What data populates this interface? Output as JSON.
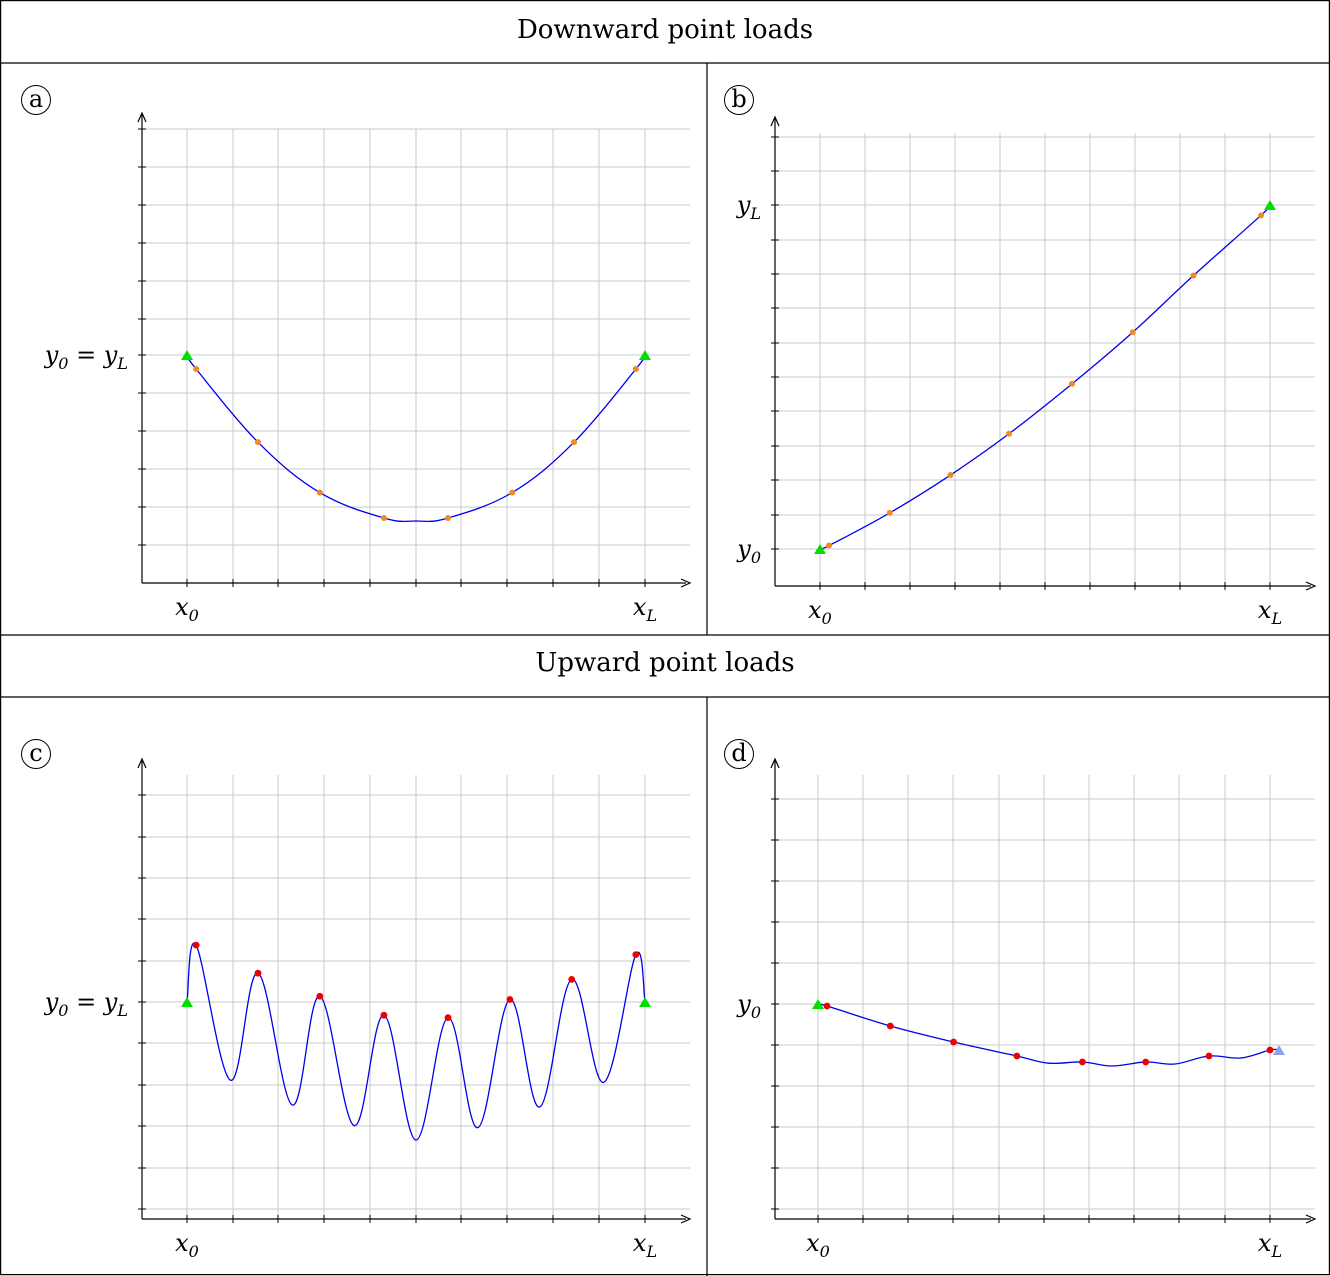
{
  "headers": {
    "top": "Downward point loads",
    "bottom": "Upward point loads"
  },
  "colors": {
    "grid": "#c8c8c8",
    "curve": "#0000ee",
    "load_down": "#f08a24",
    "load_up": "#ee0000",
    "support": "#00e000",
    "support_alt": "#8ea0e8"
  },
  "chart_data": [
    {
      "panel": "a",
      "badge": "a",
      "type": "line",
      "xlim": [
        -1,
        11
      ],
      "ylim": [
        -6,
        5.5
      ],
      "grid": true,
      "x_ticks": [
        {
          "x": 0,
          "var": "x",
          "sub": "0"
        },
        {
          "x": 10,
          "var": "x",
          "sub": "L"
        }
      ],
      "y_ticks": [
        {
          "y": 0,
          "text": "y",
          "sub": "0",
          "text2": " = y",
          "sub2": "L"
        }
      ],
      "supports": [
        {
          "x": 0,
          "y": 0,
          "kind": "fixed"
        },
        {
          "x": 10,
          "y": 0,
          "kind": "fixed"
        }
      ],
      "loads": {
        "direction": "down",
        "points": [
          [
            0.2,
            -0.37
          ],
          [
            1.55,
            -2.3
          ],
          [
            2.9,
            -3.63
          ],
          [
            4.3,
            -4.3
          ],
          [
            5.7,
            -4.3
          ],
          [
            7.1,
            -3.63
          ],
          [
            8.45,
            -2.3
          ],
          [
            9.8,
            -0.37
          ]
        ]
      },
      "curve": [
        [
          0,
          0
        ],
        [
          0.2,
          -0.37
        ],
        [
          1.55,
          -2.3
        ],
        [
          2.9,
          -3.63
        ],
        [
          4.3,
          -4.3
        ],
        [
          5.0,
          -4.38
        ],
        [
          5.7,
          -4.3
        ],
        [
          7.1,
          -3.63
        ],
        [
          8.45,
          -2.3
        ],
        [
          9.8,
          -0.37
        ],
        [
          10,
          0
        ]
      ]
    },
    {
      "panel": "b",
      "badge": "b",
      "type": "line",
      "xlim": [
        -1,
        11
      ],
      "ylim": [
        -1,
        12
      ],
      "grid": true,
      "x_ticks": [
        {
          "x": 0,
          "var": "x",
          "sub": "0"
        },
        {
          "x": 10,
          "var": "x",
          "sub": "L"
        }
      ],
      "y_ticks": [
        {
          "y": 0,
          "text": "y",
          "sub": "0"
        },
        {
          "y": 10,
          "text": "y",
          "sub": "L"
        }
      ],
      "supports": [
        {
          "x": 0,
          "y": 0,
          "kind": "fixed"
        },
        {
          "x": 10,
          "y": 10,
          "kind": "fixed"
        }
      ],
      "loads": {
        "direction": "down",
        "points": [
          [
            0.2,
            0.1
          ],
          [
            1.55,
            1.05
          ],
          [
            2.9,
            2.15
          ],
          [
            4.2,
            3.35
          ],
          [
            5.6,
            4.8
          ],
          [
            6.95,
            6.3
          ],
          [
            8.3,
            7.95
          ],
          [
            9.8,
            9.7
          ]
        ]
      },
      "curve": [
        [
          0,
          0
        ],
        [
          0.2,
          0.1
        ],
        [
          1.55,
          1.05
        ],
        [
          2.9,
          2.15
        ],
        [
          4.2,
          3.35
        ],
        [
          5.6,
          4.8
        ],
        [
          6.95,
          6.3
        ],
        [
          8.3,
          7.95
        ],
        [
          9.8,
          9.7
        ],
        [
          10,
          10
        ]
      ]
    },
    {
      "panel": "c",
      "badge": "c",
      "type": "line",
      "xlim": [
        -1,
        11
      ],
      "ylim": [
        -5,
        5.5
      ],
      "grid": true,
      "x_ticks": [
        {
          "x": 0,
          "var": "x",
          "sub": "0"
        },
        {
          "x": 10,
          "var": "x",
          "sub": "L"
        }
      ],
      "y_ticks": [
        {
          "y": 0,
          "text": "y",
          "sub": "0",
          "text2": " = y",
          "sub2": "L"
        }
      ],
      "supports": [
        {
          "x": 0,
          "y": 0,
          "kind": "fixed"
        },
        {
          "x": 10,
          "y": 0,
          "kind": "fixed"
        }
      ],
      "loads": {
        "direction": "up",
        "points": [
          [
            0.2,
            1.38
          ],
          [
            1.55,
            0.7
          ],
          [
            2.9,
            0.14
          ],
          [
            4.3,
            -0.32
          ],
          [
            5.7,
            -0.38
          ],
          [
            7.05,
            0.06
          ],
          [
            8.4,
            0.55
          ],
          [
            9.8,
            1.15
          ]
        ]
      },
      "curve": [
        [
          0,
          0
        ],
        [
          0.2,
          1.38
        ],
        [
          0.95,
          -1.9
        ],
        [
          1.55,
          0.7
        ],
        [
          2.3,
          -2.5
        ],
        [
          2.9,
          0.14
        ],
        [
          3.65,
          -3.0
        ],
        [
          4.3,
          -0.32
        ],
        [
          5.0,
          -3.35
        ],
        [
          5.7,
          -0.38
        ],
        [
          6.35,
          -3.05
        ],
        [
          7.05,
          0.06
        ],
        [
          7.7,
          -2.55
        ],
        [
          8.4,
          0.55
        ],
        [
          9.1,
          -1.95
        ],
        [
          9.8,
          1.15
        ],
        [
          10,
          0
        ]
      ]
    },
    {
      "panel": "d",
      "badge": "d",
      "type": "line",
      "xlim": [
        -1,
        11
      ],
      "ylim": [
        -5,
        5
      ],
      "grid": true,
      "x_ticks": [
        {
          "x": 0,
          "var": "x",
          "sub": "0"
        },
        {
          "x": 10,
          "var": "x",
          "sub": "L"
        }
      ],
      "y_ticks": [
        {
          "y": 0,
          "text": "y",
          "sub": "0"
        }
      ],
      "supports": [
        {
          "x": 0,
          "y": 0,
          "kind": "fixed"
        },
        {
          "x": 10.2,
          "y": -1.15,
          "kind": "free"
        }
      ],
      "loads": {
        "direction": "up",
        "points": [
          [
            0.2,
            -0.05
          ],
          [
            1.6,
            -0.55
          ],
          [
            3.0,
            -0.95
          ],
          [
            4.4,
            -1.3
          ],
          [
            5.85,
            -1.45
          ],
          [
            7.25,
            -1.45
          ],
          [
            8.65,
            -1.3
          ],
          [
            10.0,
            -1.15
          ]
        ]
      },
      "curve": [
        [
          0,
          0
        ],
        [
          0.2,
          -0.05
        ],
        [
          1.6,
          -0.55
        ],
        [
          3.0,
          -0.95
        ],
        [
          4.4,
          -1.3
        ],
        [
          5.1,
          -1.48
        ],
        [
          5.85,
          -1.45
        ],
        [
          6.5,
          -1.55
        ],
        [
          7.25,
          -1.45
        ],
        [
          7.9,
          -1.5
        ],
        [
          8.65,
          -1.3
        ],
        [
          9.35,
          -1.35
        ],
        [
          10.0,
          -1.15
        ],
        [
          10.2,
          -1.15
        ]
      ]
    }
  ]
}
